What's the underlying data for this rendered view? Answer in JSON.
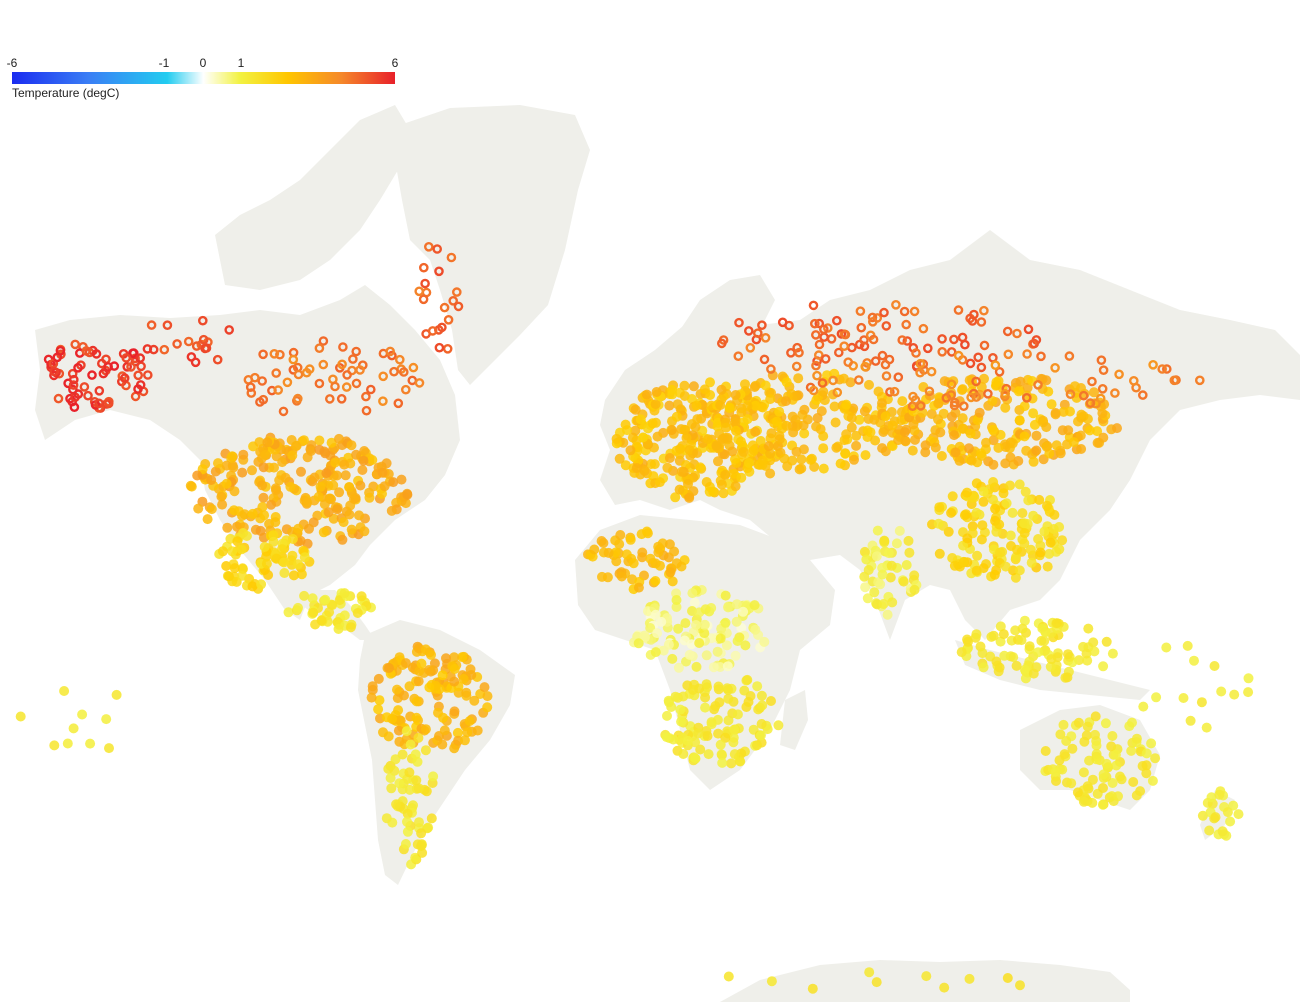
{
  "legend": {
    "title": "Temperature (degC)",
    "ticks": [
      "-6",
      "-1",
      "0",
      "1",
      "6"
    ],
    "colors": {
      "cold": "#1a2cf0",
      "cool": "#22ccf0",
      "neutral": "#ffffff",
      "warm": "#f2f242",
      "hot": "#ffc600",
      "very_hot": "#e8202a"
    }
  },
  "map": {
    "land_color": "#efefea",
    "border_color": "#c9cbe0",
    "value_range": [
      -6,
      6
    ],
    "scale_stops": [
      {
        "v": -6,
        "c": "#1a2cf0"
      },
      {
        "v": -1,
        "c": "#22ccf0"
      },
      {
        "v": 0,
        "c": "#ffffff"
      },
      {
        "v": 1,
        "c": "#f2f242"
      },
      {
        "v": 2.5,
        "c": "#ffcc00"
      },
      {
        "v": 4,
        "c": "#f5882a"
      },
      {
        "v": 6,
        "c": "#e8202a"
      }
    ]
  }
}
